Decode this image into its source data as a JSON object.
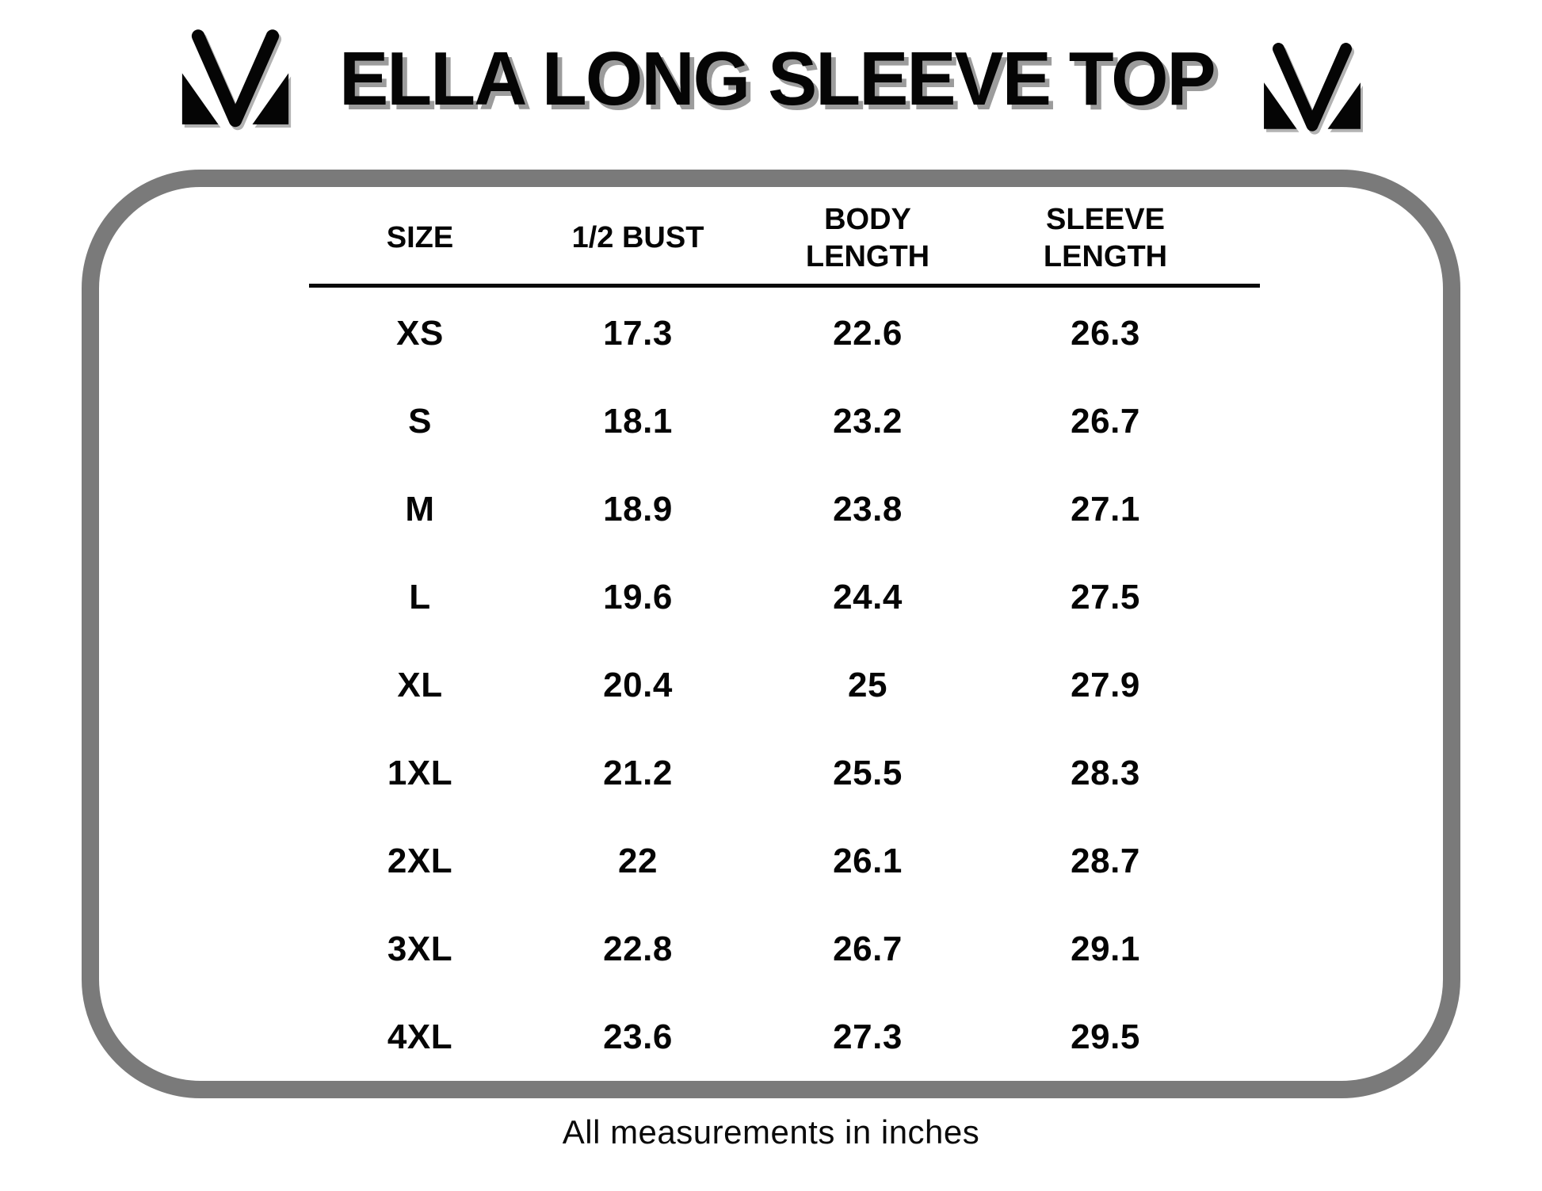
{
  "page": {
    "title": "ELLA LONG SLEEVE TOP",
    "footnote": "All measurements in inches"
  },
  "icons": {
    "left_logo": "brand-m-logo",
    "right_logo": "brand-m-logo"
  },
  "colors": {
    "text": "#050505",
    "title_shadow": "#9c9c9c",
    "frame_border": "#7a7a7a",
    "background": "#ffffff"
  },
  "table": {
    "columns": [
      "SIZE",
      "1/2 BUST",
      "BODY LENGTH",
      "SLEEVE LENGTH"
    ],
    "rows": [
      {
        "size": "XS",
        "half_bust": "17.3",
        "body_length": "22.6",
        "sleeve_length": "26.3"
      },
      {
        "size": "S",
        "half_bust": "18.1",
        "body_length": "23.2",
        "sleeve_length": "26.7"
      },
      {
        "size": "M",
        "half_bust": "18.9",
        "body_length": "23.8",
        "sleeve_length": "27.1"
      },
      {
        "size": "L",
        "half_bust": "19.6",
        "body_length": "24.4",
        "sleeve_length": "27.5"
      },
      {
        "size": "XL",
        "half_bust": "20.4",
        "body_length": "25",
        "sleeve_length": "27.9"
      },
      {
        "size": "1XL",
        "half_bust": "21.2",
        "body_length": "25.5",
        "sleeve_length": "28.3"
      },
      {
        "size": "2XL",
        "half_bust": "22",
        "body_length": "26.1",
        "sleeve_length": "28.7"
      },
      {
        "size": "3XL",
        "half_bust": "22.8",
        "body_length": "26.7",
        "sleeve_length": "29.1"
      },
      {
        "size": "4XL",
        "half_bust": "23.6",
        "body_length": "27.3",
        "sleeve_length": "29.5"
      }
    ]
  }
}
